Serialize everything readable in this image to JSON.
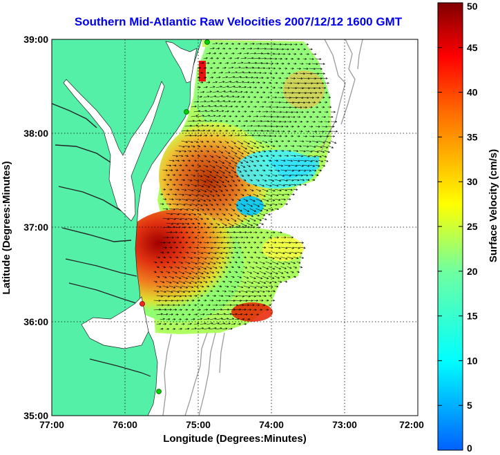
{
  "title": "Southern Mid-Atlantic Raw Velocities 2007/12/12 1600 GMT",
  "x_axis": {
    "label": "Longitude (Degrees:Minutes)",
    "ticks": [
      "77:00",
      "76:00",
      "75:00",
      "74:00",
      "73:00",
      "72:00"
    ]
  },
  "y_axis": {
    "label": "Latitude (Degrees:Minutes)",
    "ticks": [
      "39:00",
      "38:00",
      "37:00",
      "36:00",
      "35:00"
    ]
  },
  "colorbar": {
    "label": "Surface Velocity (cm/s)",
    "ticks": [
      "50",
      "45",
      "40",
      "35",
      "30",
      "25",
      "20",
      "15",
      "10",
      "5",
      "0"
    ],
    "min": 0,
    "max": 50
  },
  "chart_data": {
    "type": "heatmap",
    "title": "Southern Mid-Atlantic Raw Velocities 2007/12/12 1600 GMT",
    "xlabel": "Longitude (Degrees:Minutes)",
    "ylabel": "Latitude (Degrees:Minutes)",
    "xlim": [
      "77:00",
      "72:00"
    ],
    "ylim": [
      "35:00",
      "39:00"
    ],
    "grid": true,
    "colorbar_range_cm_s": [
      0,
      50
    ],
    "colors": {
      "land": "#55f0a8",
      "ocean": "#ffffff",
      "title": "#0000ee",
      "station": "#00d000",
      "station_red": "#ff2020"
    }
  }
}
